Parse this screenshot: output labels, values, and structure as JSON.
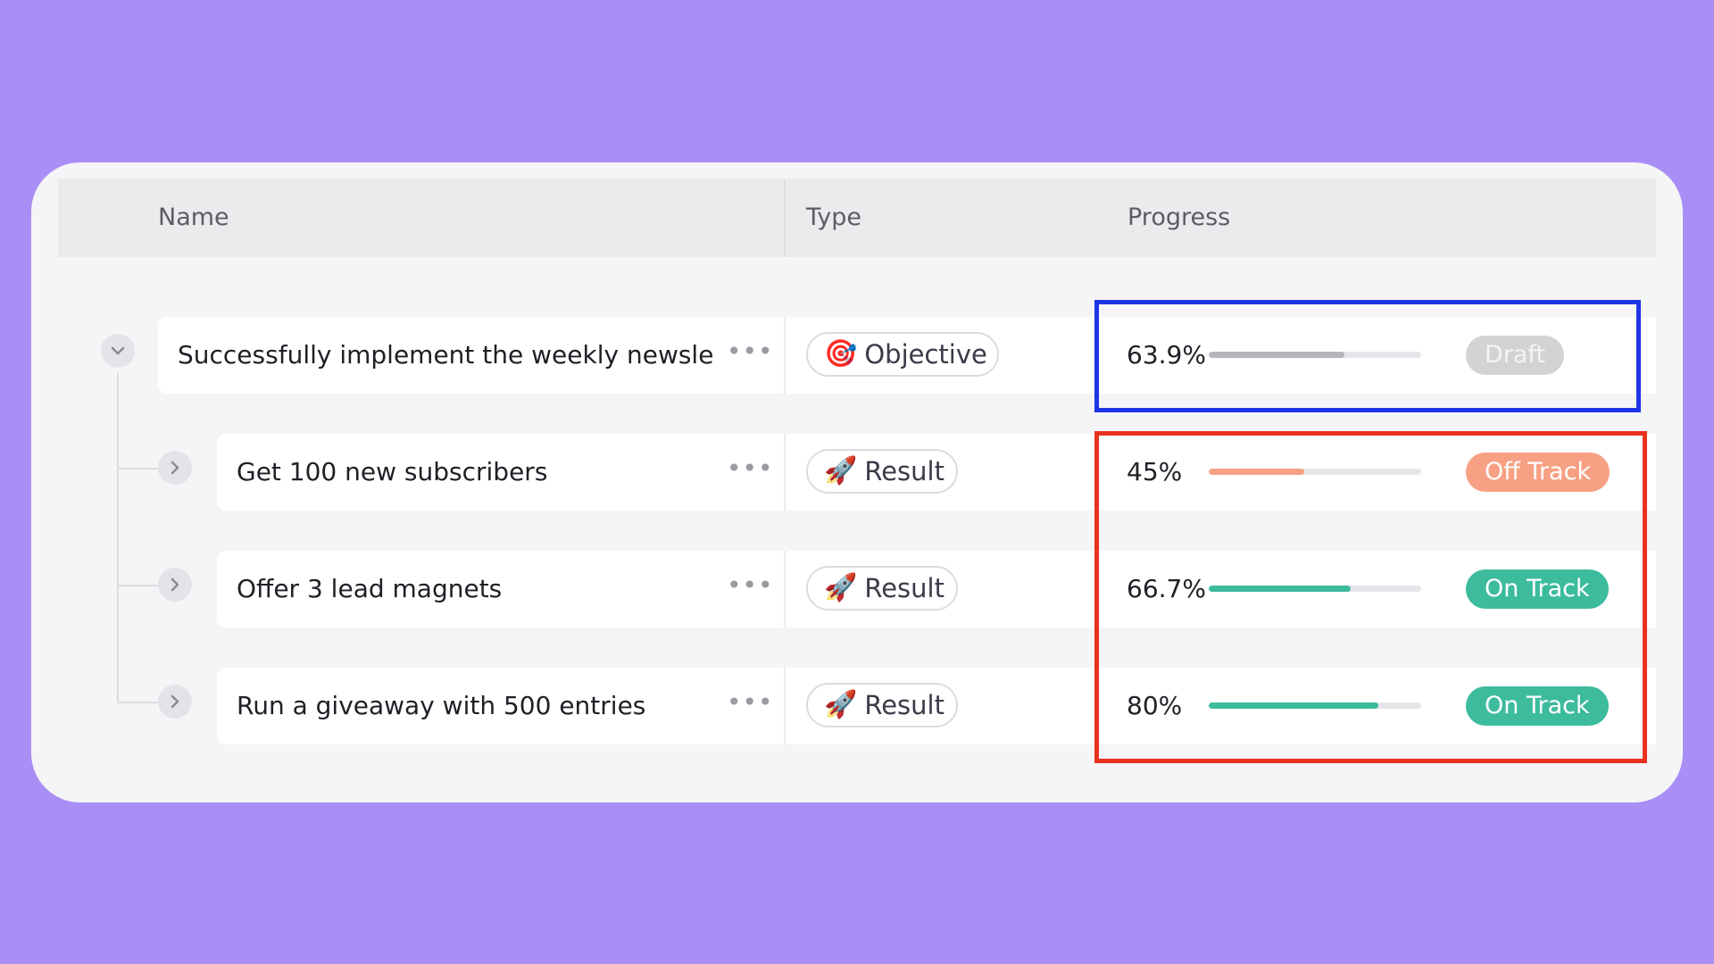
{
  "colors": {
    "background": "#a98ff5",
    "draft": "#d3d3d6",
    "off_track": "#f7a084",
    "on_track": "#3dbb9d",
    "highlight_blue": "#1e35e6",
    "highlight_red": "#e8321e"
  },
  "table": {
    "headers": {
      "name": "Name",
      "type": "Type",
      "progress": "Progress"
    },
    "rows": [
      {
        "name": "Successfully implement the weekly newsle...",
        "type_label": "Objective",
        "type_icon": "target-icon",
        "progress_label": "63.9%",
        "progress_value": 63.9,
        "status": "Draft",
        "toggle": "chevron-down-icon"
      },
      {
        "name": "Get 100 new subscribers",
        "type_label": "Result",
        "type_icon": "rocket-icon",
        "progress_label": "45%",
        "progress_value": 45,
        "status": "Off Track",
        "toggle": "chevron-right-icon"
      },
      {
        "name": "Offer 3 lead magnets",
        "type_label": "Result",
        "type_icon": "rocket-icon",
        "progress_label": "66.7%",
        "progress_value": 66.7,
        "status": "On Track",
        "toggle": "chevron-right-icon"
      },
      {
        "name": "Run a giveaway with 500 entries",
        "type_label": "Result",
        "type_icon": "rocket-icon",
        "progress_label": "80%",
        "progress_value": 80,
        "status": "On Track",
        "toggle": "chevron-right-icon"
      }
    ]
  }
}
